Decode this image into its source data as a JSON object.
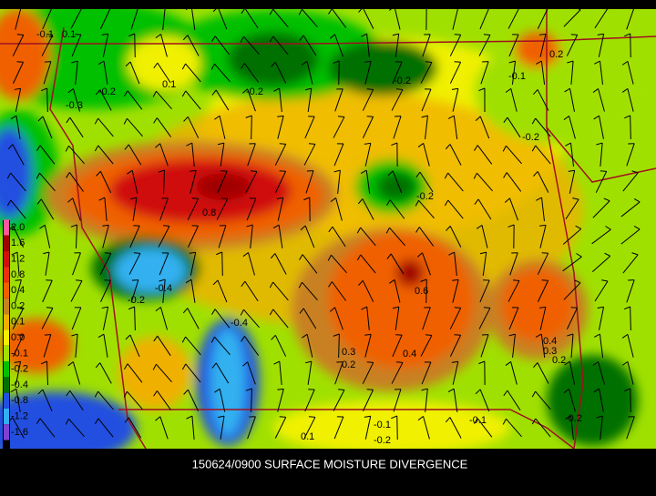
{
  "caption": "150624/0900 SURFACE MOISTURE DIVERGENCE",
  "legend": [
    {
      "label": "2.0",
      "color": "#ff55a0"
    },
    {
      "label": "1.6",
      "color": "#a00000"
    },
    {
      "label": "1.2",
      "color": "#d01010"
    },
    {
      "label": "0.8",
      "color": "#e83010"
    },
    {
      "label": "0.4",
      "color": "#f06000"
    },
    {
      "label": "0.2",
      "color": "#c88020"
    },
    {
      "label": "0.1",
      "color": "#f0b000"
    },
    {
      "label": "0.0",
      "color": "#f0f000"
    },
    {
      "label": "-0.1",
      "color": "#a0e000"
    },
    {
      "label": "-0.2",
      "color": "#00c000"
    },
    {
      "label": "-0.4",
      "color": "#007000"
    },
    {
      "label": "-0.8",
      "color": "#2050e0"
    },
    {
      "label": "-1.2",
      "color": "#30b0f0"
    },
    {
      "label": "-1.6",
      "color": "#8040d0"
    }
  ],
  "contour_labels": [
    "-0.1",
    "0.1",
    "-0.2",
    "-0.3",
    "0.1",
    "-0.2",
    "-0.2",
    "-0.1",
    "0.2",
    "-0.2",
    "-0.2",
    "0.8",
    "0.6",
    "-0.4",
    "-0.2",
    "0.4",
    "0.3",
    "0.2",
    "0.3",
    "0.2",
    "0.4",
    "-0.4",
    "-0.1",
    "-0.2",
    "0.1",
    "-0.1",
    "-0.2"
  ]
}
